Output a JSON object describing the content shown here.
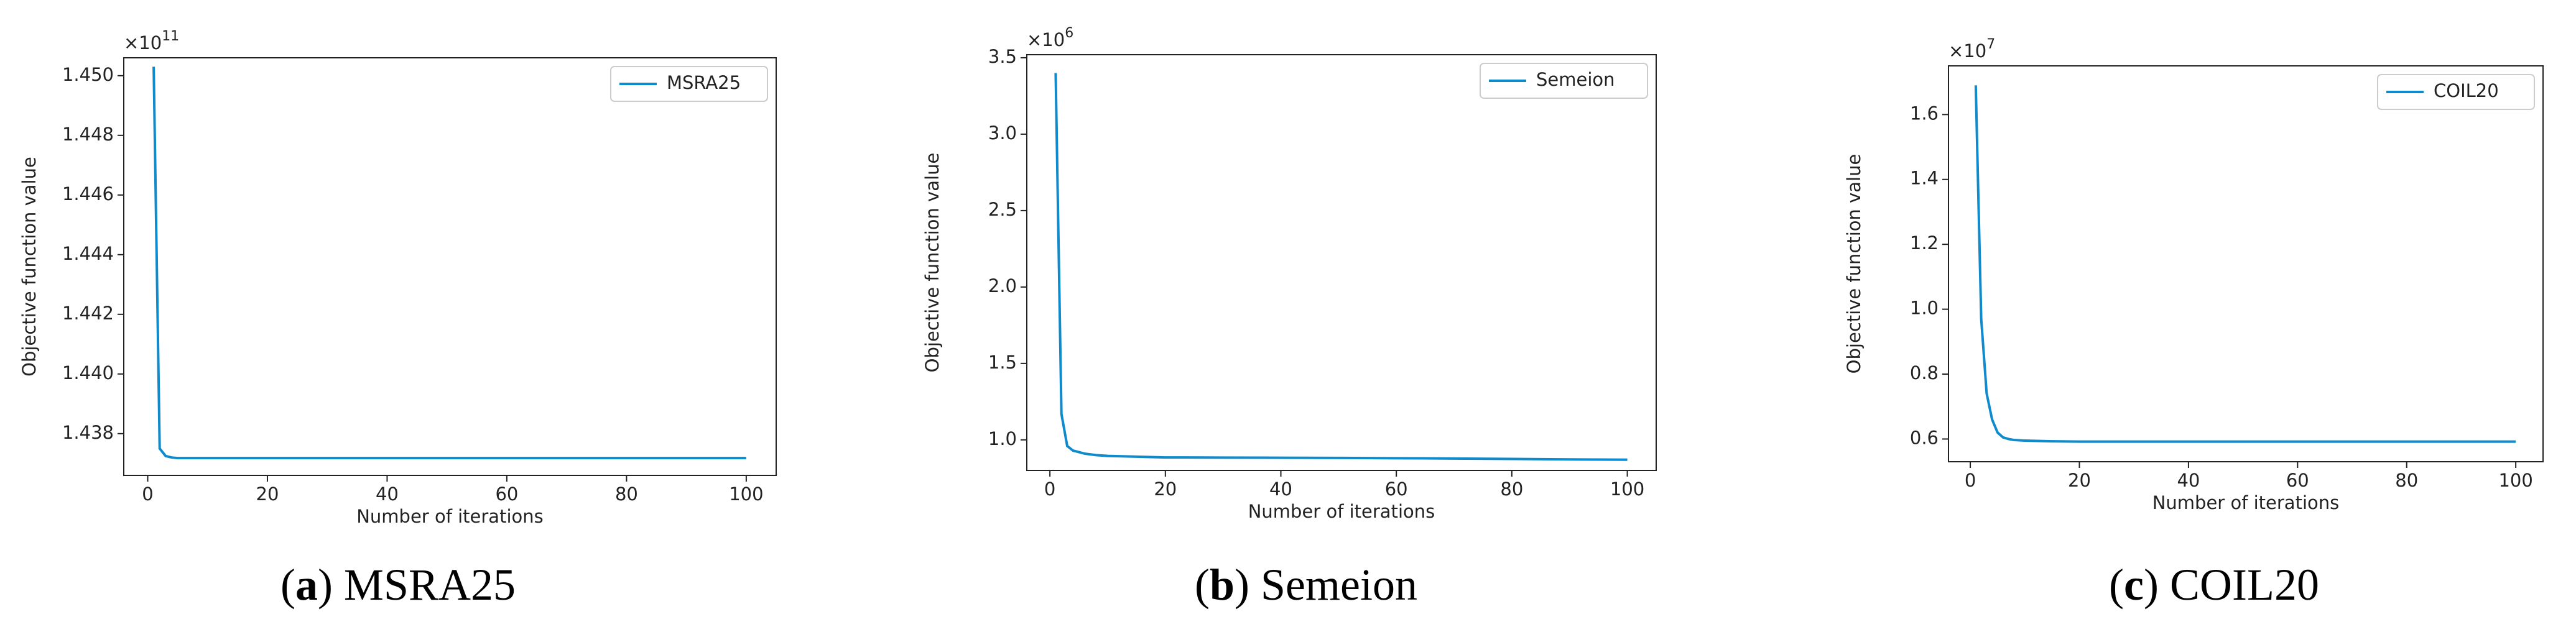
{
  "chart_data": [
    {
      "type": "line",
      "ylabel": "Objective function value",
      "xlabel": "Number of iterations",
      "offset_text": "×10",
      "offset_exponent": "11",
      "caption": [
        "(",
        "a",
        ") MSRA25"
      ],
      "x": [
        1,
        2,
        3,
        4,
        5,
        6,
        8,
        10,
        15,
        20,
        30,
        40,
        50,
        60,
        70,
        80,
        90,
        100
      ],
      "series": [
        {
          "name": "MSRA25",
          "color": "#0f8acb",
          "values": [
            1.4503,
            1.4375,
            1.43725,
            1.4372,
            1.43718,
            1.43718,
            1.43718,
            1.43718,
            1.43718,
            1.43718,
            1.43718,
            1.43718,
            1.43718,
            1.43718,
            1.43718,
            1.43718,
            1.43718,
            1.43718
          ]
        }
      ],
      "xlim": [
        -4,
        105
      ],
      "ylim": [
        1.4366,
        1.4506
      ],
      "xticks": [
        0,
        20,
        40,
        60,
        80,
        100
      ],
      "yticks": [
        1.438,
        {
          "value": 1.44,
          "label": "1.440"
        },
        1.442,
        1.444,
        1.446,
        1.448,
        {
          "value": 1.45,
          "label": "1.450"
        }
      ],
      "legend": "upper right"
    },
    {
      "type": "line",
      "ylabel": "Objective function value",
      "xlabel": "Number of iterations",
      "offset_text": "×10",
      "offset_exponent": "6",
      "caption": [
        "(",
        "b",
        ") Semeion"
      ],
      "x": [
        1,
        2,
        3,
        4,
        5,
        6,
        8,
        10,
        15,
        20,
        30,
        40,
        50,
        60,
        70,
        80,
        90,
        100
      ],
      "series": [
        {
          "name": "Semeion",
          "color": "#0f8acb",
          "values": [
            3.4,
            1.17,
            0.96,
            0.93,
            0.92,
            0.91,
            0.9,
            0.895,
            0.89,
            0.885,
            0.884,
            0.883,
            0.882,
            0.88,
            0.878,
            0.875,
            0.872,
            0.87
          ]
        }
      ],
      "xlim": [
        -4,
        105
      ],
      "ylim": [
        0.8,
        3.52
      ],
      "xticks": [
        0,
        20,
        40,
        60,
        80,
        100
      ],
      "yticks": [
        {
          "value": 1,
          "label": "1.0"
        },
        1.5,
        {
          "value": 2,
          "label": "2.0"
        },
        2.5,
        {
          "value": 3,
          "label": "3.0"
        },
        3.5
      ],
      "legend": "upper right"
    },
    {
      "type": "line",
      "ylabel": "Objective function value",
      "xlabel": "Number of iterations",
      "offset_text": "×10",
      "offset_exponent": "7",
      "caption": [
        "(",
        "c",
        ") COIL20"
      ],
      "x": [
        1,
        2,
        3,
        4,
        5,
        6,
        7,
        8,
        10,
        15,
        20,
        30,
        40,
        50,
        60,
        70,
        80,
        90,
        100
      ],
      "series": [
        {
          "name": "COIL20",
          "color": "#0f8acb",
          "values": [
            1.69,
            0.97,
            0.74,
            0.66,
            0.62,
            0.605,
            0.6,
            0.597,
            0.595,
            0.593,
            0.592,
            0.592,
            0.592,
            0.592,
            0.592,
            0.592,
            0.592,
            0.592,
            0.592
          ]
        }
      ],
      "xlim": [
        -4,
        105
      ],
      "ylim": [
        0.53,
        1.75
      ],
      "xticks": [
        0,
        20,
        40,
        60,
        80,
        100
      ],
      "yticks": [
        0.6,
        0.8,
        {
          "value": 1,
          "label": "1.0"
        },
        1.2,
        1.4,
        1.6
      ],
      "legend": "upper right"
    }
  ]
}
